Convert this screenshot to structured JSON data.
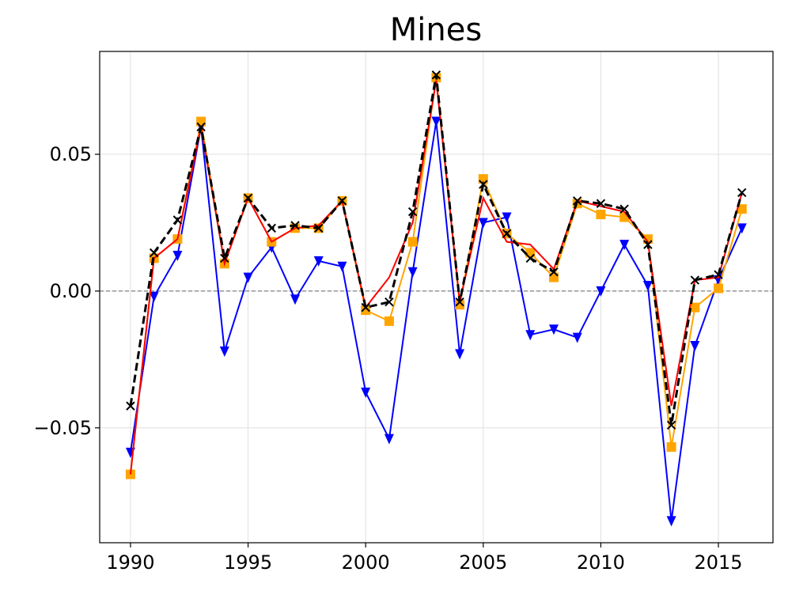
{
  "chart_data": {
    "type": "line",
    "title": "Mines",
    "x": [
      1990,
      1991,
      1992,
      1993,
      1994,
      1995,
      1996,
      1997,
      1998,
      1999,
      2000,
      2001,
      2002,
      2003,
      2004,
      2005,
      2006,
      2007,
      2008,
      2009,
      2010,
      2011,
      2012,
      2013,
      2014,
      2015,
      2016
    ],
    "series": [
      {
        "color": "#0000ff",
        "marker": "v",
        "linestyle": "-",
        "values": [
          -0.059,
          -0.002,
          0.013,
          0.06,
          -0.022,
          0.005,
          0.016,
          -0.003,
          0.011,
          0.009,
          -0.037,
          -0.054,
          0.007,
          0.062,
          -0.023,
          0.025,
          0.027,
          -0.016,
          -0.014,
          -0.017,
          0.0,
          0.017,
          0.002,
          -0.084,
          -0.02,
          0.004,
          0.023
        ]
      },
      {
        "color": "#ffa500",
        "marker": "s",
        "linestyle": "-",
        "values": [
          -0.067,
          0.012,
          0.019,
          0.062,
          0.01,
          0.034,
          0.018,
          0.023,
          0.023,
          0.033,
          -0.007,
          -0.011,
          0.018,
          0.078,
          -0.005,
          0.041,
          0.021,
          0.014,
          0.005,
          0.032,
          0.028,
          0.027,
          0.019,
          -0.057,
          -0.006,
          0.001,
          0.03
        ]
      },
      {
        "color": "#ff0000",
        "marker": "none",
        "linestyle": "-",
        "values": [
          -0.067,
          0.012,
          0.019,
          0.06,
          0.01,
          0.034,
          0.018,
          0.023,
          0.024,
          0.033,
          -0.006,
          0.005,
          0.025,
          0.077,
          -0.004,
          0.034,
          0.018,
          0.017,
          0.008,
          0.033,
          0.031,
          0.029,
          0.018,
          -0.042,
          0.004,
          0.005,
          0.036
        ]
      },
      {
        "color": "#000000",
        "marker": "x",
        "linestyle": "--",
        "values": [
          -0.042,
          0.014,
          0.026,
          0.06,
          0.012,
          0.034,
          0.023,
          0.024,
          0.023,
          0.033,
          -0.006,
          -0.004,
          0.029,
          0.079,
          -0.004,
          0.039,
          0.021,
          0.012,
          0.007,
          0.033,
          0.032,
          0.03,
          0.017,
          -0.049,
          0.004,
          0.006,
          0.036
        ]
      }
    ],
    "xlim": [
      1988.69,
      2017.32
    ],
    "ylim": [
      -0.092,
      0.0876
    ],
    "xticks": [
      1990,
      1995,
      2000,
      2005,
      2010,
      2015
    ],
    "yticks": [
      {
        "value": -0.05,
        "label": "−0.05"
      },
      {
        "value": 0,
        "label": "0.00"
      },
      0.05
    ],
    "grid": true,
    "zero_line": true
  }
}
